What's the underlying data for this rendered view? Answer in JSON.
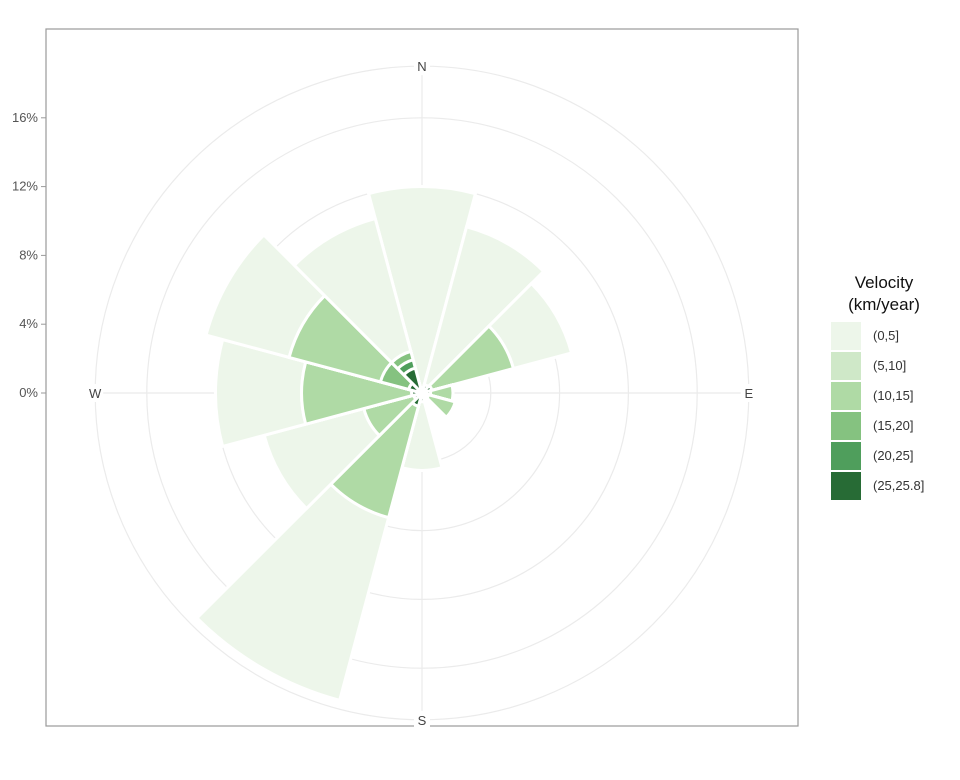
{
  "chart_data": {
    "type": "wind-rose",
    "title": "",
    "radial_axis": {
      "unit": "%",
      "ticks": [
        0,
        4,
        8,
        12,
        16
      ],
      "tick_labels": [
        "0%",
        "4%",
        "8%",
        "12%",
        "16%"
      ],
      "max": 19
    },
    "directions": [
      "N",
      "E",
      "S",
      "W"
    ],
    "sector_width_deg": 30,
    "legend": {
      "title_line1": "Velocity",
      "title_line2": "(km/year)",
      "position": "right"
    },
    "bins": [
      {
        "label": "(0,5]",
        "color": "#edf6ea"
      },
      {
        "label": "(5,10]",
        "color": "#cfe8c8"
      },
      {
        "label": "(10,15]",
        "color": "#afdaa5"
      },
      {
        "label": "(15,20]",
        "color": "#85c280"
      },
      {
        "label": "(20,25]",
        "color": "#4f9e5c"
      },
      {
        "label": "(25,25.8]",
        "color": "#276b35"
      }
    ],
    "sectors": [
      {
        "direction_deg": 0,
        "cumulative": [
          12.0,
          0.3,
          0.3,
          0.3,
          0.3,
          0.3
        ]
      },
      {
        "direction_deg": 30,
        "cumulative": [
          10.0,
          0.5,
          0.5,
          0.5,
          0.5,
          0.5
        ]
      },
      {
        "direction_deg": 60,
        "cumulative": [
          9.0,
          5.5,
          5.5,
          0.6,
          0.6,
          0.6
        ]
      },
      {
        "direction_deg": 90,
        "cumulative": [
          1.8,
          1.8,
          1.8,
          0.5,
          0.5,
          0.5
        ]
      },
      {
        "direction_deg": 120,
        "cumulative": [
          2.0,
          2.0,
          2.0,
          0.4,
          0.4,
          0.4
        ]
      },
      {
        "direction_deg": 150,
        "cumulative": [
          0.4,
          0.4,
          0.4,
          0.4,
          0.4,
          0.4
        ]
      },
      {
        "direction_deg": 180,
        "cumulative": [
          4.5,
          0.5,
          0.5,
          0.5,
          0.5,
          0.5
        ]
      },
      {
        "direction_deg": 210,
        "cumulative": [
          18.5,
          7.5,
          7.5,
          0.8,
          0.8,
          0.8
        ]
      },
      {
        "direction_deg": 240,
        "cumulative": [
          9.5,
          3.5,
          3.5,
          0.5,
          0.5,
          0.5
        ]
      },
      {
        "direction_deg": 270,
        "cumulative": [
          12.0,
          7.0,
          7.0,
          0.6,
          0.6,
          0.6
        ]
      },
      {
        "direction_deg": 300,
        "cumulative": [
          13.0,
          8.0,
          8.0,
          2.5,
          0.8,
          0.8
        ]
      },
      {
        "direction_deg": 330,
        "cumulative": [
          10.5,
          2.5,
          2.5,
          2.5,
          2.0,
          1.5
        ]
      }
    ]
  }
}
